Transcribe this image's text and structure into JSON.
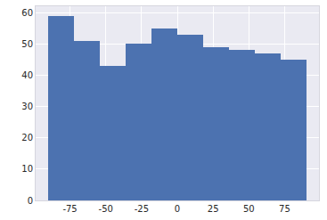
{
  "chart_data": {
    "type": "histogram",
    "bins": [
      -90,
      -72,
      -54,
      -36,
      -18,
      0,
      18,
      36,
      54,
      72,
      90
    ],
    "values": [
      59,
      51,
      43,
      50,
      55,
      53,
      49,
      48,
      47,
      45
    ],
    "color": "#4c72b0",
    "xlim": [
      -99,
      99
    ],
    "xticks": [
      -75,
      -50,
      -25,
      0,
      25,
      50,
      75
    ],
    "ylim": [
      0,
      62
    ],
    "yticks": [
      0,
      10,
      20,
      30,
      40,
      50,
      60
    ],
    "grid": true
  }
}
